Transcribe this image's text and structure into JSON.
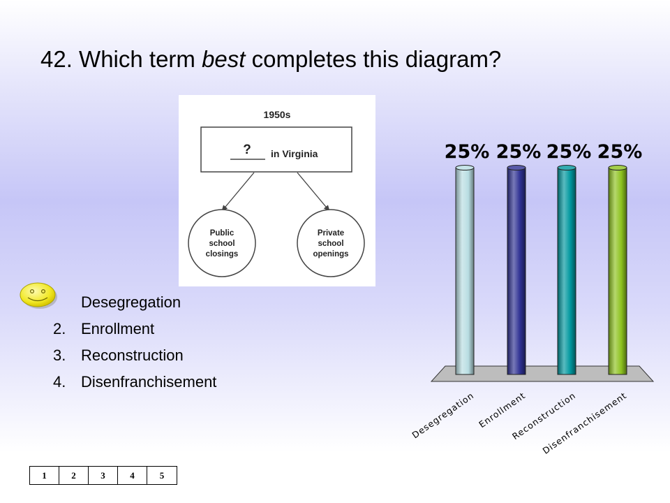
{
  "question": {
    "prefix": "42.  Which term ",
    "emphasis": "best",
    "suffix": " completes this diagram?"
  },
  "diagram": {
    "header": "1950s",
    "blank": "?",
    "box_text": "in Virginia",
    "left_circle": [
      "Public",
      "school",
      "closings"
    ],
    "right_circle": [
      "Private",
      "school",
      "openings"
    ]
  },
  "answers": [
    {
      "number": "",
      "text": "Desegregation",
      "correct": true
    },
    {
      "number": "2.",
      "text": "Enrollment"
    },
    {
      "number": "3.",
      "text": "Reconstruction"
    },
    {
      "number": "4.",
      "text": "Disenfranchisement"
    }
  ],
  "correct_marker_icon": "smiley-face-icon",
  "chart_data": {
    "type": "bar",
    "categories": [
      "Desegregation",
      "Enrollment",
      "Reconstruction",
      "Disenfranchisement"
    ],
    "values": [
      25,
      25,
      25,
      25
    ],
    "value_labels": [
      "25%",
      "25%",
      "25%",
      "25%"
    ],
    "ylim": [
      0,
      25
    ],
    "colors": [
      "#b8dde2",
      "#2e3192",
      "#00979e",
      "#8dc21f"
    ],
    "title": "",
    "xlabel": "",
    "ylabel": ""
  },
  "keypad": [
    "1",
    "2",
    "3",
    "4",
    "5"
  ]
}
